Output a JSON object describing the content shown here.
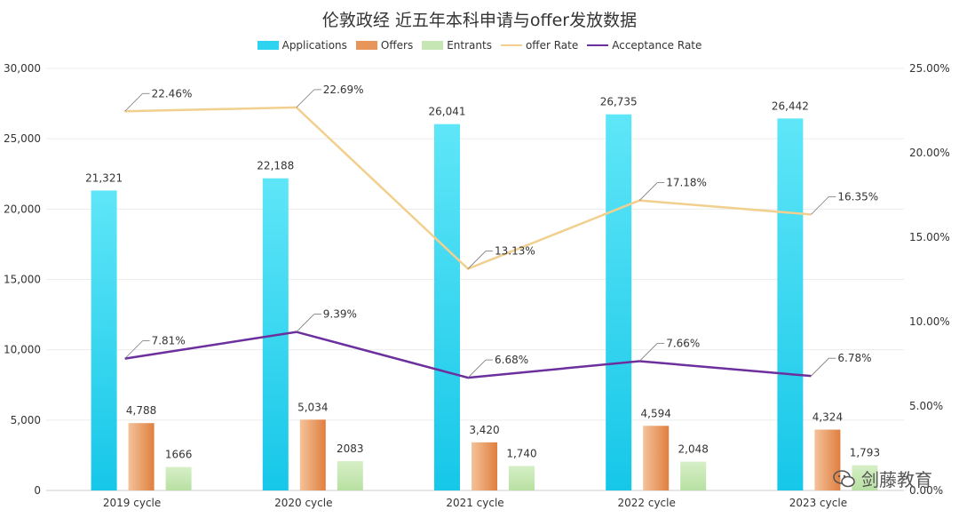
{
  "chart_data": {
    "type": "bar",
    "title": "伦敦政经 近五年本科申请与offer发放数据",
    "categories": [
      "2019 cycle",
      "2020 cycle",
      "2021 cycle",
      "2022 cycle",
      "2023 cycle"
    ],
    "series": [
      {
        "name": "Applications",
        "kind": "bar",
        "axis": "left",
        "color": "#2ed3ef",
        "values": [
          21321,
          22188,
          26041,
          26735,
          26442
        ],
        "labels": [
          "21,321",
          "22,188",
          "26,041",
          "26,735",
          "26,442"
        ]
      },
      {
        "name": "Offers",
        "kind": "bar",
        "axis": "left",
        "color": "#e8955a",
        "values": [
          4788,
          5034,
          3420,
          4594,
          4324
        ],
        "labels": [
          "4,788",
          "5,034",
          "3,420",
          "4,594",
          "4,324"
        ]
      },
      {
        "name": "Entrants",
        "kind": "bar",
        "axis": "left",
        "color": "#c6e6b4",
        "values": [
          1666,
          2083,
          1740,
          2048,
          1793
        ],
        "labels": [
          "1666",
          "2083",
          "1,740",
          "2,048",
          "1,793"
        ]
      },
      {
        "name": "offer Rate",
        "kind": "line",
        "axis": "right",
        "color": "#f1d08f",
        "values": [
          22.46,
          22.69,
          13.13,
          17.18,
          16.35
        ],
        "labels": [
          "22.46%",
          "22.69%",
          "13.13%",
          "17.18%",
          "16.35%"
        ]
      },
      {
        "name": "Acceptance Rate",
        "kind": "line",
        "axis": "right",
        "color": "#6b2f9e",
        "values": [
          7.81,
          9.39,
          6.68,
          7.66,
          6.78
        ],
        "labels": [
          "7.81%",
          "9.39%",
          "6.68%",
          "7.66%",
          "6.78%"
        ]
      }
    ],
    "ylim_left": [
      0,
      30000
    ],
    "ylim_right": [
      0,
      25
    ],
    "y_ticks_left": [
      "0",
      "5,000",
      "10,000",
      "15,000",
      "20,000",
      "25,000",
      "30,000"
    ],
    "y_ticks_right": [
      "0.00%",
      "5.00%",
      "10.00%",
      "15.00%",
      "20.00%",
      "25.00%"
    ],
    "grid": true,
    "legend_position": "top-center"
  },
  "watermark": {
    "brand": "剑藤教育",
    "icon": "wechat-icon"
  }
}
